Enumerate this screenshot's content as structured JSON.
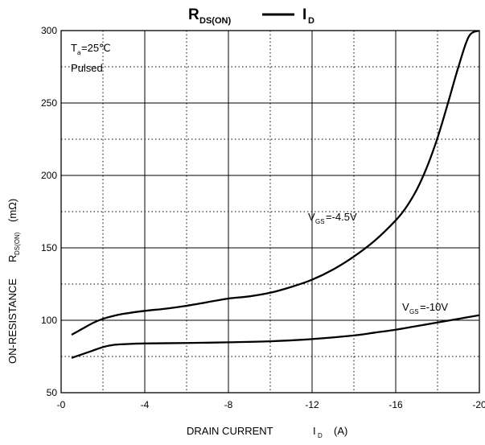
{
  "chart_data": {
    "type": "line",
    "title": {
      "left_main": "R",
      "left_sub": "DS(ON)",
      "right_main": "I",
      "right_sub": "D"
    },
    "xlabel": {
      "main": "DRAIN CURRENT",
      "symbol": "I",
      "symbol_sub": "D",
      "unit": "(A)"
    },
    "ylabel": {
      "main": "ON-RESISTANCE",
      "symbol": "R",
      "symbol_sub": "DS(ON)",
      "unit": "(mΩ)"
    },
    "xlim": [
      0,
      -20
    ],
    "ylim": [
      50,
      300
    ],
    "x_ticks": [
      0,
      -4,
      -8,
      -12,
      -16,
      -20
    ],
    "x_tick_labels": [
      "-0",
      "-4",
      "-8",
      "-12",
      "-16",
      "-20"
    ],
    "x_minor_dotted": [
      -2,
      -6,
      -10,
      -14,
      -18
    ],
    "y_ticks": [
      50,
      100,
      150,
      200,
      250,
      300
    ],
    "y_tick_labels": [
      "50",
      "100",
      "150",
      "200",
      "250",
      "300"
    ],
    "y_minor_dotted": [
      75,
      125,
      175,
      225,
      275
    ],
    "conditions": {
      "temp_main": "T",
      "temp_sub": "a",
      "temp_value": "=25℃",
      "mode": "Pulsed"
    },
    "series": [
      {
        "name": "VGS=-4.5V",
        "label_main": "V",
        "label_sub": "GS",
        "label_value": "=-4.5V",
        "x": [
          -0.5,
          -1,
          -1.5,
          -2,
          -2.5,
          -3,
          -4,
          -5,
          -6,
          -7,
          -8,
          -9,
          -10,
          -11,
          -12,
          -13,
          -14,
          -15,
          -16,
          -16.5,
          -17,
          -17.5,
          -18,
          -18.5,
          -19,
          -19.5,
          -20
        ],
        "y": [
          90,
          94,
          98,
          101,
          103,
          104.5,
          106.5,
          108,
          110,
          112.5,
          115,
          116.5,
          119,
          123,
          128,
          135,
          144,
          155,
          169,
          178,
          190,
          206,
          226,
          250,
          275,
          296,
          300
        ]
      },
      {
        "name": "VGS=-10V",
        "label_main": "V",
        "label_sub": "GS",
        "label_value": "=-10V",
        "x": [
          -0.5,
          -1,
          -1.5,
          -2,
          -2.5,
          -3,
          -4,
          -6,
          -8,
          -10,
          -12,
          -14,
          -15,
          -16,
          -17,
          -18,
          -19,
          -20
        ],
        "y": [
          74,
          76.5,
          79,
          81.5,
          83,
          83.5,
          84,
          84.3,
          84.8,
          85.5,
          87,
          89.5,
          91.5,
          93.5,
          96,
          98.5,
          101,
          103.5
        ]
      }
    ]
  }
}
